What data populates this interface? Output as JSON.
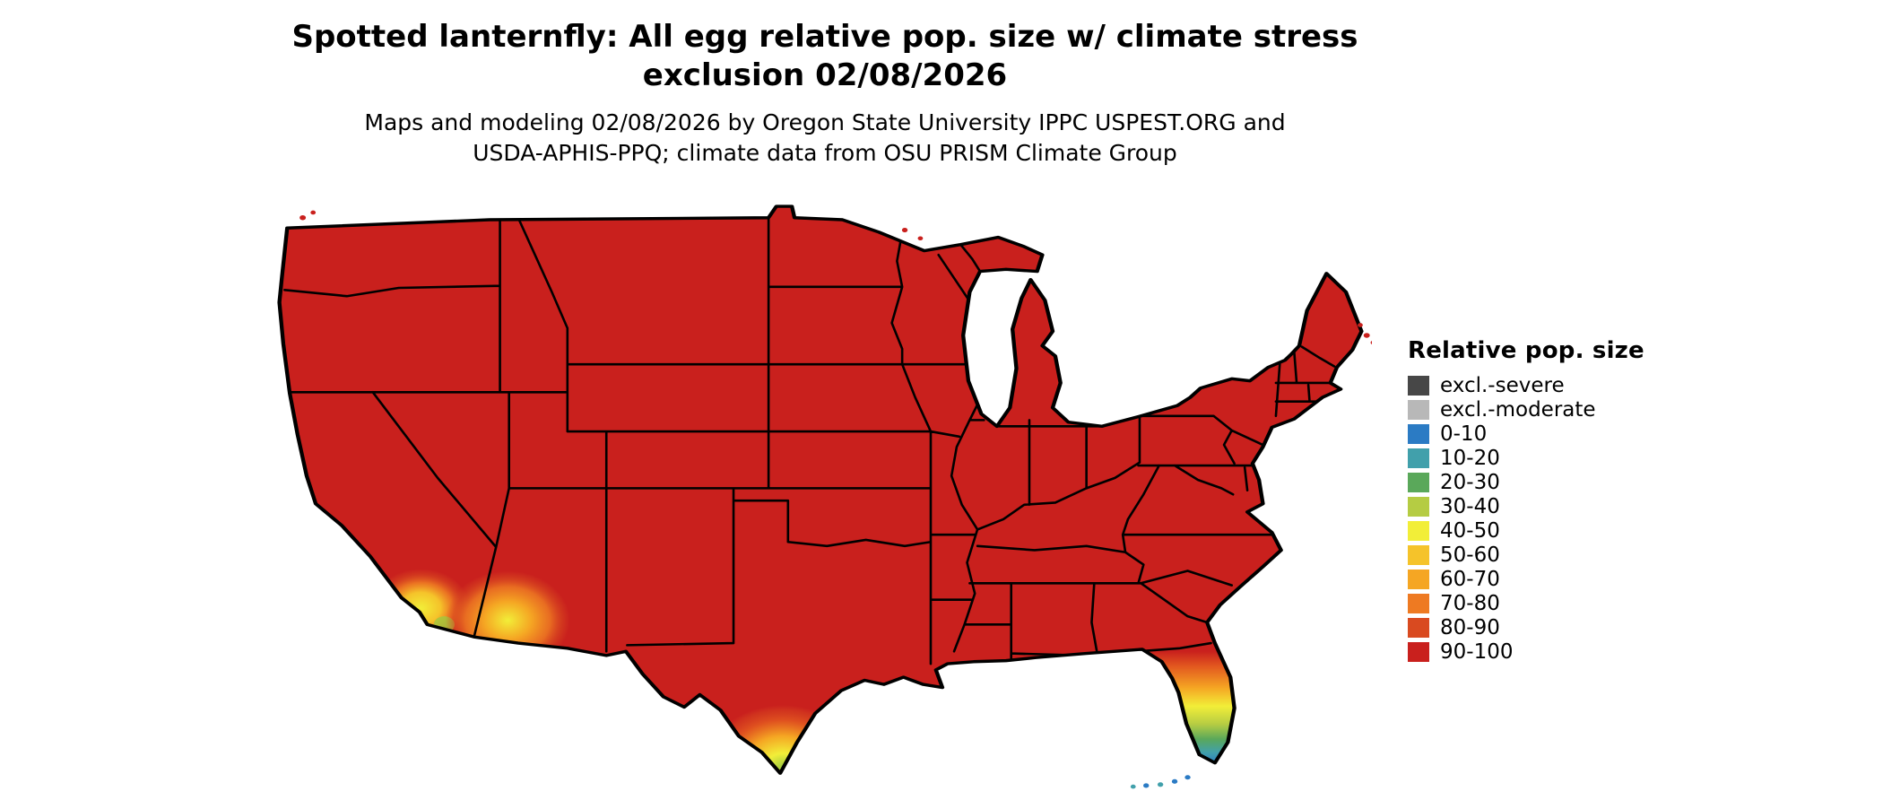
{
  "title": {
    "line1": "Spotted lanternfly: All egg relative pop. size w/ climate stress",
    "line2": "exclusion 02/08/2026"
  },
  "subtitle": {
    "line1": "Maps and modeling 02/08/2026 by Oregon State University IPPC USPEST.ORG and",
    "line2": "USDA-APHIS-PPQ; climate data from OSU PRISM Climate Group"
  },
  "legend": {
    "title": "Relative pop. size",
    "items": [
      {
        "label": "excl.-severe",
        "color": "#474747"
      },
      {
        "label": "excl.-moderate",
        "color": "#b8b8b8"
      },
      {
        "label": "0-10",
        "color": "#2b7bc4"
      },
      {
        "label": "10-20",
        "color": "#41a0ab"
      },
      {
        "label": "20-30",
        "color": "#5aa85a"
      },
      {
        "label": "30-40",
        "color": "#b5cc43"
      },
      {
        "label": "40-50",
        "color": "#f2ee38"
      },
      {
        "label": "50-60",
        "color": "#f5c32a"
      },
      {
        "label": "60-70",
        "color": "#f5a623"
      },
      {
        "label": "70-80",
        "color": "#ee7a22"
      },
      {
        "label": "80-90",
        "color": "#d94a20"
      },
      {
        "label": "90-100",
        "color": "#c9201d"
      }
    ]
  },
  "chart_data": {
    "type": "choropleth_map",
    "region": "contiguous United States with state borders",
    "value_classes": [
      "excl.-severe",
      "excl.-moderate",
      "0-10",
      "10-20",
      "20-30",
      "30-40",
      "40-50",
      "50-60",
      "60-70",
      "70-80",
      "80-90",
      "90-100"
    ],
    "dominant_class": "90-100",
    "gradient_areas": [
      {
        "area": "southern California",
        "classes": "40-50 to 80-90"
      },
      {
        "area": "southwestern Arizona",
        "classes": "40-50 to 80-90"
      },
      {
        "area": "southern Texas coast and Rio Grande valley",
        "classes": "20-30 to 80-90"
      },
      {
        "area": "southern Florida peninsula",
        "classes": "0-10 at tip grading through 20-30, 40-50, 60-70, 80-90 northward"
      },
      {
        "area": "Florida Keys",
        "classes": "0-10 to 10-20"
      }
    ],
    "legend_position": "right"
  }
}
